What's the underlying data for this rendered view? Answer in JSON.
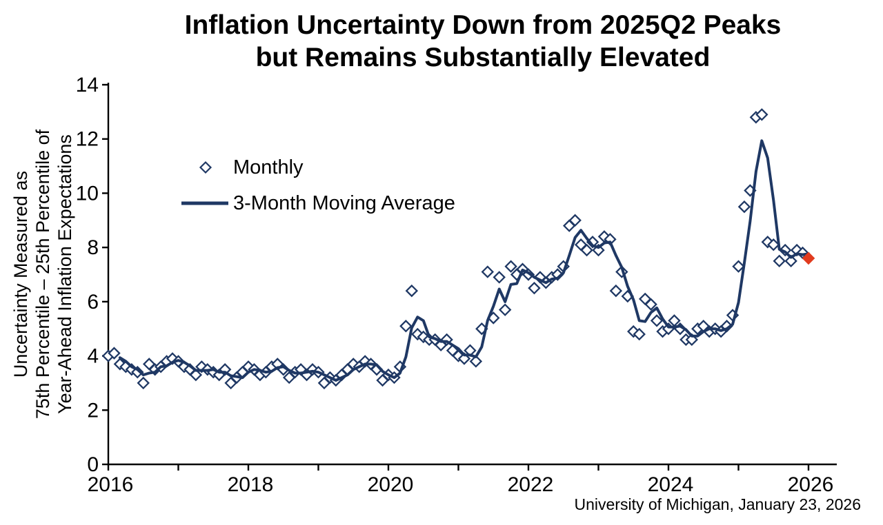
{
  "title": {
    "line1": "Inflation Uncertainty Down from 2025Q2 Peaks",
    "line2": "but Remains Substantially Elevated"
  },
  "axes": {
    "y_label_lines": [
      "Uncertainty Measured as",
      "75th Percentile – 25th Percentile of",
      "Year-Ahead Inflation Expectations"
    ]
  },
  "legend": {
    "monthly": "Monthly",
    "moving_average": "3-Month Moving Average"
  },
  "source": "University of Michigan, January 23, 2026",
  "colors": {
    "navy": "#1f3864",
    "red": "#e13b1e",
    "axis": "#000000"
  },
  "chart_data": {
    "type": "line+scatter",
    "title": "Inflation Uncertainty Down from 2025Q2 Peaks but Remains Substantially Elevated",
    "ylabel": "Uncertainty Measured as 75th Percentile – 25th Percentile of Year-Ahead Inflation Expectations",
    "xlabel": "",
    "ylim": [
      0,
      14
    ],
    "xlim": [
      2016,
      2026.4
    ],
    "grid": false,
    "legend_position": "upper-left-inside",
    "y_ticks": [
      0,
      2,
      4,
      6,
      8,
      10,
      12,
      14
    ],
    "x_tick_years": [
      2016,
      2017,
      2018,
      2019,
      2020,
      2021,
      2022,
      2023,
      2024,
      2025,
      2026
    ],
    "x_tick_labels": [
      2016,
      2018,
      2020,
      2022,
      2024,
      2026
    ],
    "series_monthly": {
      "name": "Monthly",
      "marker": "open-diamond",
      "start_year": 2016,
      "start_month": 1,
      "values": [
        4.0,
        4.1,
        3.7,
        3.6,
        3.5,
        3.4,
        3.0,
        3.7,
        3.5,
        3.6,
        3.8,
        3.9,
        3.8,
        3.6,
        3.5,
        3.3,
        3.6,
        3.5,
        3.4,
        3.3,
        3.5,
        3.0,
        3.2,
        3.4,
        3.6,
        3.5,
        3.3,
        3.4,
        3.6,
        3.7,
        3.5,
        3.2,
        3.4,
        3.5,
        3.3,
        3.5,
        3.4,
        3.0,
        3.2,
        3.1,
        3.3,
        3.5,
        3.7,
        3.6,
        3.8,
        3.7,
        3.5,
        3.1,
        3.3,
        3.2,
        3.6,
        5.1,
        6.4,
        4.8,
        4.7,
        4.6,
        4.6,
        4.4,
        4.6,
        4.2,
        4.0,
        3.9,
        4.2,
        3.8,
        5.0,
        7.1,
        5.4,
        6.9,
        5.7,
        7.3,
        7.0,
        7.2,
        7.0,
        6.5,
        6.9,
        6.7,
        6.9,
        7.0,
        7.3,
        8.8,
        9.0,
        8.1,
        7.9,
        8.2,
        7.9,
        8.4,
        8.3,
        6.4,
        7.1,
        6.2,
        4.9,
        4.8,
        6.1,
        5.9,
        5.3,
        4.9,
        5.0,
        5.3,
        5.0,
        4.6,
        4.6,
        5.0,
        5.1,
        4.9,
        5.0,
        4.9,
        5.1,
        5.5,
        7.3,
        9.5,
        10.1,
        12.8,
        12.9,
        8.2,
        8.1,
        7.5,
        7.9,
        7.5,
        7.9,
        7.8
      ]
    },
    "series_moving_average": {
      "name": "3-Month Moving Average",
      "derived": "3-month trailing moving average of Monthly series including latest point"
    },
    "latest_point": {
      "name": "Latest (red diamond)",
      "year": 2026,
      "month": 1,
      "value": 7.6
    }
  }
}
